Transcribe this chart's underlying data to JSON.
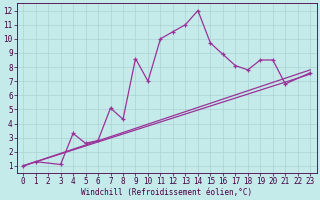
{
  "xlabel": "Windchill (Refroidissement éolien,°C)",
  "xlim": [
    -0.5,
    23.5
  ],
  "ylim": [
    0.5,
    12.5
  ],
  "xticks": [
    0,
    1,
    2,
    3,
    4,
    5,
    6,
    7,
    8,
    9,
    10,
    11,
    12,
    13,
    14,
    15,
    16,
    17,
    18,
    19,
    20,
    21,
    22,
    23
  ],
  "yticks": [
    1,
    2,
    3,
    4,
    5,
    6,
    7,
    8,
    9,
    10,
    11,
    12
  ],
  "bg_color": "#c5eaea",
  "grid_color": "#aad4d4",
  "line_color": "#993399",
  "straight_line1_x": [
    0,
    23
  ],
  "straight_line1_y": [
    1.0,
    7.5
  ],
  "straight_line2_x": [
    0,
    23
  ],
  "straight_line2_y": [
    1.0,
    7.8
  ],
  "main_x": [
    0,
    1,
    3,
    4,
    5,
    6,
    7,
    8,
    9,
    10,
    11,
    12,
    13,
    14,
    15,
    16,
    17,
    18,
    19,
    20,
    21,
    23
  ],
  "main_y": [
    1.0,
    1.3,
    1.1,
    3.3,
    2.6,
    2.8,
    5.1,
    4.3,
    8.6,
    7.0,
    10.0,
    10.5,
    11.0,
    12.0,
    9.7,
    8.9,
    8.1,
    7.8,
    8.5,
    8.5,
    6.8,
    7.6
  ],
  "tick_labelsize": 5.5,
  "xlabel_fontsize": 5.5,
  "xlabel_color": "#440044",
  "tick_color": "#440044",
  "spine_color": "#440044",
  "linewidth": 0.9,
  "marker_size": 3.5,
  "marker_lw": 0.9
}
